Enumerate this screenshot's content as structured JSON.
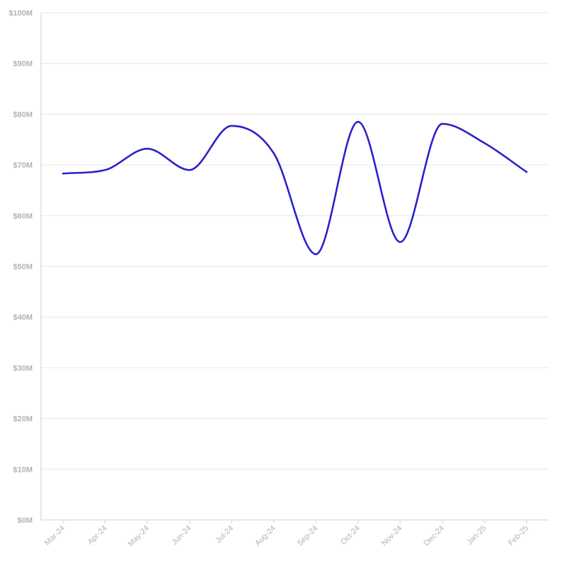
{
  "chart_data": {
    "type": "line",
    "title": "",
    "xlabel": "",
    "ylabel": "",
    "categories": [
      "Mar-24",
      "Apr-24",
      "May-24",
      "Jun-24",
      "Jul-24",
      "Aug-24",
      "Sep-24",
      "Oct-24",
      "Nov-24",
      "Dec-24",
      "Jan-25",
      "Feb-25"
    ],
    "series": [
      {
        "values": [
          68.3,
          69.0,
          73.2,
          69.0,
          77.7,
          72.3,
          52.4,
          78.5,
          54.8,
          78.1,
          74.3,
          68.6
        ],
        "color": "#2b21c9"
      }
    ],
    "ylim": [
      0,
      100
    ],
    "yticks": [
      0,
      10,
      20,
      30,
      40,
      50,
      60,
      70,
      80,
      90,
      100
    ],
    "ytick_labels": [
      "$0M",
      "$10M",
      "$20M",
      "$30M",
      "$40M",
      "$50M",
      "$60M",
      "$70M",
      "$80M",
      "$90M",
      "$100M"
    ],
    "grid": true,
    "legend": "none",
    "line_smoothing": "monotone"
  }
}
